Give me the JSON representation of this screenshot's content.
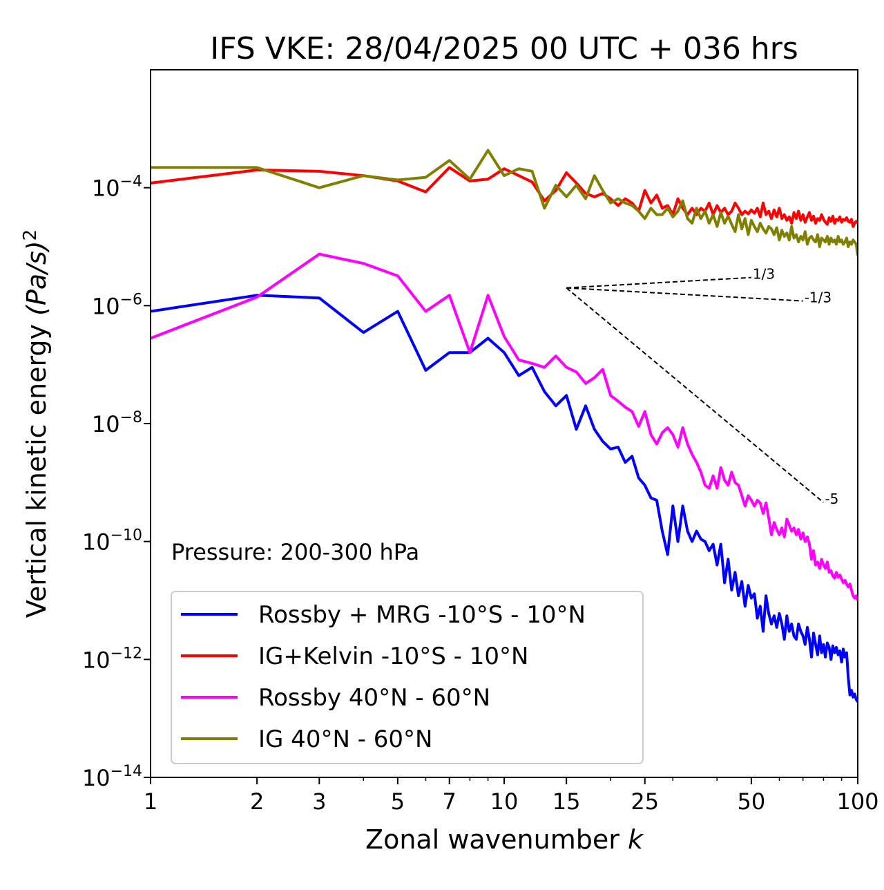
{
  "chart_data": {
    "type": "line",
    "title": "IFS VKE: 28/04/2025 00 UTC + 036 hrs",
    "xlabel": "Zonal wavenumber",
    "xlabel_var": "k",
    "ylabel": "Vertical kinetic energy",
    "ylabel_unit": "(Pa/s)",
    "ylabel_unit_exp": "2",
    "x_scale": "log",
    "y_scale": "log",
    "xlim": [
      1,
      100
    ],
    "ylim": [
      1e-14,
      0.01
    ],
    "x_ticks": [
      1,
      2,
      3,
      5,
      7,
      10,
      15,
      25,
      50,
      100
    ],
    "y_ticks": [
      {
        "value": 1e-14,
        "base": "10",
        "exp": "−14"
      },
      {
        "value": 1e-12,
        "base": "10",
        "exp": "−12"
      },
      {
        "value": 1e-10,
        "base": "10",
        "exp": "−10"
      },
      {
        "value": 1e-08,
        "base": "10",
        "exp": "−8"
      },
      {
        "value": 1e-06,
        "base": "10",
        "exp": "−6"
      },
      {
        "value": 0.0001,
        "base": "10",
        "exp": "−4"
      }
    ],
    "annotation": "Pressure: 200-300 hPa",
    "grid": false,
    "legend_position": "lower-left",
    "reference_lines": [
      {
        "label": "1/3",
        "x": [
          15,
          50
        ],
        "y": [
          2e-06,
          3e-06
        ]
      },
      {
        "label": "-1/3",
        "x": [
          15,
          70
        ],
        "y": [
          2e-06,
          1.2e-06
        ]
      },
      {
        "label": "-5",
        "x": [
          15,
          80
        ],
        "y": [
          2e-06,
          4.6e-10
        ]
      }
    ],
    "series": [
      {
        "name": "Rossby + MRG -10°S - 10°N",
        "color": "#0000ff",
        "x": [
          1,
          2,
          3,
          4,
          5,
          6,
          7,
          8,
          9,
          10,
          11,
          12,
          13,
          14,
          15,
          16,
          17,
          18,
          19,
          20,
          21,
          22,
          23,
          24,
          25,
          26,
          27,
          28,
          29,
          30,
          31,
          32,
          33,
          34,
          35,
          36,
          37,
          38,
          39,
          40,
          41,
          42,
          43,
          44,
          45,
          46,
          47,
          48,
          49,
          50,
          51,
          52,
          53,
          54,
          55,
          56,
          57,
          58,
          59,
          60,
          61,
          62,
          63,
          64,
          65,
          66,
          67,
          68,
          69,
          70,
          71,
          72,
          73,
          74,
          75,
          76,
          77,
          78,
          79,
          80,
          81,
          82,
          83,
          84,
          85,
          86,
          87,
          88,
          89,
          90,
          91,
          92,
          93,
          94,
          95,
          96,
          97,
          98,
          99,
          100
        ],
        "values": [
          8e-07,
          1.5e-06,
          1.35e-06,
          3.5e-07,
          8e-07,
          8e-08,
          1.6e-07,
          1.6e-07,
          2.8e-07,
          1.6e-07,
          6.5e-08,
          9e-08,
          3.5e-08,
          2e-08,
          3e-08,
          8e-09,
          2e-08,
          8e-09,
          5e-09,
          3.7e-09,
          4e-09,
          2.2e-09,
          2.8e-09,
          1.2e-09,
          9e-10,
          5.5e-10,
          5e-10,
          1.5e-10,
          6e-11,
          4e-10,
          1e-10,
          4e-10,
          1.5e-10,
          1e-10,
          1.5e-10,
          1.1e-10,
          1e-10,
          7e-11,
          9e-11,
          4e-11,
          9e-11,
          2e-11,
          5e-11,
          1.5e-11,
          3e-11,
          1.2e-11,
          2.1e-11,
          8e-12,
          1.8e-11,
          1.1e-11,
          1.3e-11,
          5e-12,
          8e-12,
          3e-12,
          1.2e-11,
          6e-12,
          4e-12,
          5.5e-12,
          3.5e-12,
          6e-12,
          4e-12,
          2.2e-12,
          5.5e-12,
          3e-12,
          4e-12,
          2.5e-12,
          2.2e-12,
          4e-12,
          3e-12,
          2.5e-12,
          1.8e-12,
          3.5e-12,
          2.2e-12,
          1.1e-12,
          2.8e-12,
          1.8e-12,
          1.2e-12,
          2.5e-12,
          1.3e-12,
          1.8e-12,
          1.1e-12,
          1.9e-12,
          1.6e-12,
          1e-12,
          1.7e-12,
          1.3e-12,
          1.6e-12,
          1.2e-12,
          1.4e-12,
          9e-13,
          1.5e-12,
          1.1e-12,
          1.3e-12,
          5e-13,
          2.5e-13,
          3e-13,
          2.3e-13,
          2.6e-13,
          2.1e-13,
          1.9e-13
        ]
      },
      {
        "name": "IG+Kelvin -10°S - 10°N",
        "color": "#ff0000",
        "x": [
          1,
          2,
          3,
          4,
          5,
          6,
          7,
          8,
          9,
          10,
          11,
          12,
          13,
          14,
          15,
          16,
          17,
          18,
          19,
          20,
          21,
          22,
          23,
          24,
          25,
          26,
          27,
          28,
          29,
          30,
          31,
          32,
          33,
          34,
          35,
          36,
          37,
          38,
          39,
          40,
          41,
          42,
          43,
          44,
          45,
          46,
          47,
          48,
          49,
          50,
          51,
          52,
          53,
          54,
          55,
          56,
          57,
          58,
          59,
          60,
          61,
          62,
          63,
          64,
          65,
          66,
          67,
          68,
          69,
          70,
          71,
          72,
          73,
          74,
          75,
          76,
          77,
          78,
          79,
          80,
          81,
          82,
          83,
          84,
          85,
          86,
          87,
          88,
          89,
          90,
          91,
          92,
          93,
          94,
          95,
          96,
          97,
          98,
          99,
          100
        ],
        "values": [
          0.00012,
          0.0002,
          0.00019,
          0.00016,
          0.00013,
          8.5e-05,
          0.00022,
          0.00013,
          0.00014,
          0.00021,
          0.00016,
          0.000125,
          6e-05,
          9e-05,
          0.00018,
          0.00012,
          8e-05,
          7e-05,
          8e-05,
          6.5e-05,
          5e-05,
          6.5e-05,
          5.5e-05,
          4e-05,
          9e-05,
          5.5e-05,
          7.5e-05,
          4.5e-05,
          5e-05,
          3.5e-05,
          6.5e-05,
          4.5e-05,
          3.5e-05,
          4.5e-05,
          3.5e-05,
          4.5e-05,
          4e-05,
          5.5e-05,
          3.5e-05,
          5e-05,
          3.8e-05,
          4.5e-05,
          3.5e-05,
          4e-05,
          5.5e-05,
          4.5e-05,
          3.5e-05,
          4e-05,
          3.6e-05,
          4.2e-05,
          3.7e-05,
          4.5e-05,
          3.2e-05,
          5.5e-05,
          3.5e-05,
          4e-05,
          3e-05,
          4.2e-05,
          3.2e-05,
          4.5e-05,
          3e-05,
          3.5e-05,
          2.8e-05,
          3.2e-05,
          2.5e-05,
          3.8e-05,
          3e-05,
          4e-05,
          2.8e-05,
          3.5e-05,
          2.6e-05,
          3.2e-05,
          3.8e-05,
          2.8e-05,
          3.3e-05,
          2.5e-05,
          3e-05,
          2.8e-05,
          3.5e-05,
          2.9e-05,
          2.6e-05,
          2.4e-05,
          3.1e-05,
          2.7e-05,
          3.3e-05,
          2.5e-05,
          2.9e-05,
          2.8e-05,
          3.2e-05,
          2.6e-05,
          2.9e-05,
          2.8e-05,
          3.1e-05,
          2.7e-05,
          2.6e-05,
          2.9e-05,
          2.2e-05,
          2.5e-05,
          2.7e-05,
          2.5e-05
        ]
      },
      {
        "name": "Rossby 40°N - 60°N",
        "color": "#ff00ff",
        "x": [
          1,
          2,
          3,
          4,
          5,
          6,
          7,
          8,
          9,
          10,
          11,
          12,
          13,
          14,
          15,
          16,
          17,
          18,
          19,
          20,
          21,
          22,
          23,
          24,
          25,
          26,
          27,
          28,
          29,
          30,
          31,
          32,
          33,
          34,
          35,
          36,
          37,
          38,
          39,
          40,
          41,
          42,
          43,
          44,
          45,
          46,
          47,
          48,
          49,
          50,
          51,
          52,
          53,
          54,
          55,
          56,
          57,
          58,
          59,
          60,
          61,
          62,
          63,
          64,
          65,
          66,
          67,
          68,
          69,
          70,
          71,
          72,
          73,
          74,
          75,
          76,
          77,
          78,
          79,
          80,
          81,
          82,
          83,
          84,
          85,
          86,
          87,
          88,
          89,
          90,
          91,
          92,
          93,
          94,
          95,
          96,
          97,
          98,
          99,
          100
        ],
        "values": [
          2.8e-07,
          1.4e-06,
          7.5e-06,
          5.2e-06,
          3.2e-06,
          8e-07,
          1.5e-06,
          1.6e-07,
          1.5e-06,
          3e-07,
          1.2e-07,
          1.05e-07,
          9e-08,
          1.4e-07,
          9e-08,
          7.5e-08,
          4.8e-08,
          6e-08,
          8.3e-08,
          3e-08,
          2.4e-08,
          1.9e-08,
          1.6e-08,
          9e-09,
          1.6e-08,
          6.5e-09,
          4.5e-09,
          7e-09,
          8.5e-09,
          6.5e-09,
          4e-09,
          8.5e-09,
          4.5e-09,
          3e-09,
          2.2e-09,
          1.5e-09,
          9e-10,
          8e-10,
          1.3e-09,
          8e-10,
          1.8e-09,
          1.1e-09,
          9e-10,
          1.5e-09,
          1e-09,
          9e-10,
          6e-10,
          4e-10,
          6e-10,
          5e-10,
          4e-10,
          5e-10,
          4.5e-10,
          3e-10,
          4.5e-10,
          2.5e-10,
          1.3e-10,
          2.1e-10,
          1.6e-10,
          1.3e-10,
          1.7e-10,
          1.2e-10,
          2.4e-10,
          1.9e-10,
          1.5e-10,
          1.7e-10,
          1.3e-10,
          1.6e-10,
          1.1e-10,
          1.4e-10,
          1e-10,
          1.2e-10,
          9e-11,
          5e-11,
          7e-11,
          4e-11,
          4.5e-11,
          3.5e-11,
          5e-11,
          4e-11,
          3.5e-11,
          4.5e-11,
          3e-11,
          3.2e-11,
          2.6e-11,
          2.4e-11,
          3e-11,
          2.5e-11,
          2.7e-11,
          2.3e-11,
          2e-11,
          2.2e-11,
          1.9e-11,
          1.7e-11,
          1.9e-11,
          1.5e-11,
          1.2e-11,
          1.1e-11,
          1.2e-11,
          1e-11
        ]
      },
      {
        "name": "IG 40°N - 60°N",
        "color": "#808000",
        "x": [
          1,
          2,
          3,
          4,
          5,
          6,
          7,
          8,
          9,
          10,
          11,
          12,
          13,
          14,
          15,
          16,
          17,
          18,
          19,
          20,
          21,
          22,
          23,
          24,
          25,
          26,
          27,
          28,
          29,
          30,
          31,
          32,
          33,
          34,
          35,
          36,
          37,
          38,
          39,
          40,
          41,
          42,
          43,
          44,
          45,
          46,
          47,
          48,
          49,
          50,
          51,
          52,
          53,
          54,
          55,
          56,
          57,
          58,
          59,
          60,
          61,
          62,
          63,
          64,
          65,
          66,
          67,
          68,
          69,
          70,
          71,
          72,
          73,
          74,
          75,
          76,
          77,
          78,
          79,
          80,
          81,
          82,
          83,
          84,
          85,
          86,
          87,
          88,
          89,
          90,
          91,
          92,
          93,
          94,
          95,
          96,
          97,
          98,
          99,
          100
        ],
        "values": [
          0.00022,
          0.00022,
          0.0001,
          0.00016,
          0.000135,
          0.00015,
          0.00029,
          0.00014,
          0.00043,
          0.00016,
          0.00021,
          0.00019,
          4.5e-05,
          0.00011,
          7e-05,
          0.00011,
          6.5e-05,
          0.00016,
          9e-05,
          5.5e-05,
          6.5e-05,
          5.5e-05,
          5e-05,
          4e-05,
          3e-05,
          4.5e-05,
          3.5e-05,
          3.5e-05,
          4.5e-05,
          3.2e-05,
          4e-05,
          6e-05,
          3e-05,
          2.5e-05,
          4.5e-05,
          3e-05,
          4e-05,
          2.5e-05,
          3.5e-05,
          2.2e-05,
          3.8e-05,
          2.5e-05,
          3.3e-05,
          2.4e-05,
          1.8e-05,
          3.5e-05,
          2e-05,
          3e-05,
          1.6e-05,
          2.8e-05,
          2.2e-05,
          1.8e-05,
          2.5e-05,
          2e-05,
          1.7e-05,
          2.2e-05,
          2e-05,
          1.6e-05,
          2.1e-05,
          1.3e-05,
          1.9e-05,
          1.5e-05,
          1.7e-05,
          1.3e-05,
          2.2e-05,
          1.4e-05,
          1.6e-05,
          1.2e-05,
          1.5e-05,
          1.3e-05,
          1.8e-05,
          1.1e-05,
          1.4e-05,
          1.5e-05,
          1.3e-05,
          1.2e-05,
          1.6e-05,
          1e-05,
          1.4e-05,
          1.3e-05,
          1.2e-05,
          1.5e-05,
          1.1e-05,
          1.4e-05,
          1.2e-05,
          1.3e-05,
          1.1e-05,
          1.5e-05,
          1.2e-05,
          1.3e-05,
          1.1e-05,
          1.2e-05,
          1.4e-05,
          1e-05,
          1.2e-05,
          1.1e-05,
          1.3e-05,
          1.2e-05,
          1.1e-05,
          7e-06
        ]
      }
    ]
  }
}
